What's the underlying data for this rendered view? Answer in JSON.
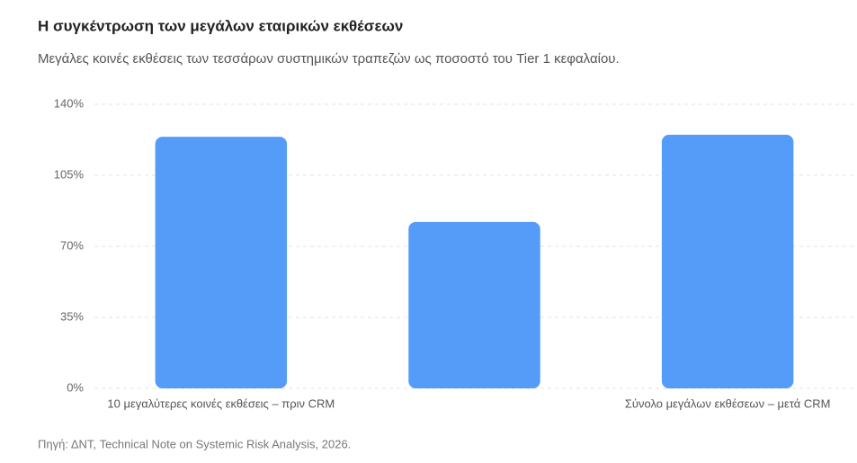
{
  "chart_data": {
    "type": "bar",
    "title": "Η συγκέντρωση των μεγάλων εταιρικών εκθέσεων",
    "subtitle": "Μεγάλες κοινές εκθέσεις των τεσσάρων συστημικών τραπεζών ως ποσοστό του Tier 1 κεφαλαίου.",
    "categories": [
      "10 μεγαλύτερες κοινές εκθέσεις – πριν CRM",
      null,
      "Σύνολο μεγάλων εκθέσεων – μετά CRM"
    ],
    "values": [
      124,
      82,
      125
    ],
    "color": "#559cf8",
    "ylim": [
      0,
      140
    ],
    "yticks": [
      {
        "value": 0,
        "label": "0%"
      },
      {
        "value": 35,
        "label": "35%"
      },
      {
        "value": 70,
        "label": "70%"
      },
      {
        "value": 105,
        "label": "105%"
      },
      {
        "value": 140,
        "label": "140%"
      }
    ],
    "grid": true,
    "source": "Πηγή: ΔΝΤ, Technical Note on Systemic Risk Analysis, 2026."
  }
}
